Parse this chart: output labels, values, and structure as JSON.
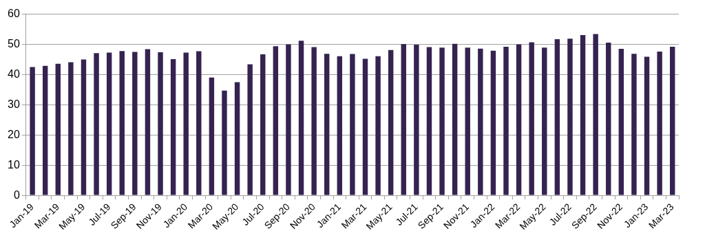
{
  "chart_data": {
    "type": "bar",
    "categories": [
      "Jan-19",
      null,
      "Mar-19",
      null,
      "May-19",
      null,
      "Jul-19",
      null,
      "Sep-19",
      null,
      "Nov-19",
      null,
      "Jan-20",
      null,
      "Mar-20",
      null,
      "May-20",
      null,
      "Jul-20",
      null,
      "Sep-20",
      null,
      "Nov-20",
      null,
      "Jan-21",
      null,
      "Mar-21",
      null,
      "May-21",
      null,
      "Jul-21",
      null,
      "Sep-21",
      null,
      "Nov-21",
      null,
      "Jan-22",
      null,
      "Mar-22",
      null,
      "May-22",
      null,
      "Jul-22",
      null,
      "Sep-22",
      null,
      "Nov-22",
      null,
      "Jan-23",
      null,
      "Mar-23"
    ],
    "values": [
      42.5,
      42.9,
      43.6,
      44.1,
      45,
      47.1,
      47.3,
      47.8,
      47.5,
      48.4,
      47.4,
      45.1,
      47.3,
      47.7,
      39,
      34.7,
      37.5,
      43.4,
      46.7,
      49.4,
      50,
      51.2,
      49.1,
      46.9,
      46.1,
      46.8,
      45.2,
      46.1,
      48.1,
      50.1,
      49.9,
      49.1,
      48.9,
      50.2,
      48.9,
      48.6,
      47.9,
      49.2,
      50,
      50.7,
      48.9,
      51.7,
      51.9,
      53.1,
      53.4,
      50.6,
      48.5,
      46.9,
      45.9,
      47.6,
      49.2
    ],
    "color": "#35234f",
    "ylim": [
      0,
      60
    ],
    "yticks": [
      0,
      10,
      20,
      30,
      40,
      50,
      60
    ],
    "grid": "y",
    "legend": false
  }
}
